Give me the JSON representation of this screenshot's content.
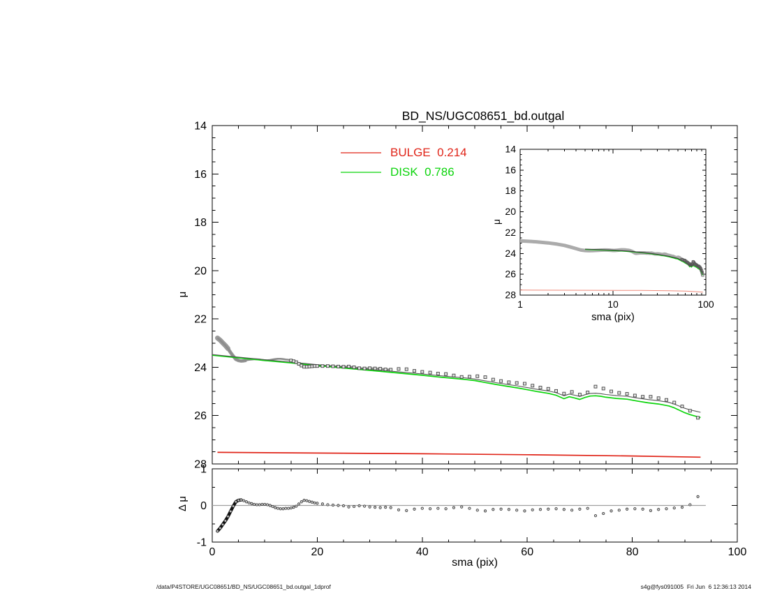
{
  "page": {
    "footer_left": "/data/P4STORE/UGC08651/BD_NS/UGC08651_bd.outgal_1dprof",
    "footer_right": "s4g@fys091005  Fri Jun  6 12:36:13 2014"
  },
  "chart_data": {
    "type": "line",
    "title": "BD_NS/UGC08651_bd.outgal",
    "panels": [
      {
        "name": "main-profile",
        "xlabel": "",
        "ylabel": "μ",
        "xlim": [
          0,
          100
        ],
        "ylim": [
          28,
          14
        ],
        "y_inverted": true,
        "xticks": [
          0,
          20,
          40,
          60,
          80,
          100
        ],
        "yticks": [
          14,
          16,
          18,
          20,
          22,
          24,
          26,
          28
        ]
      },
      {
        "name": "inset-profile-logx",
        "xlabel": "sma (pix)",
        "ylabel": "μ",
        "xscale": "log",
        "xlim": [
          1,
          100
        ],
        "ylim": [
          28,
          14
        ],
        "y_inverted": true,
        "xticks": [
          1,
          10,
          100
        ],
        "yticks": [
          14,
          16,
          18,
          20,
          22,
          24,
          26,
          28
        ]
      },
      {
        "name": "residual",
        "xlabel": "sma (pix)",
        "ylabel": "Δ μ",
        "xlim": [
          0,
          100
        ],
        "ylim": [
          -1,
          1
        ],
        "xticks": [
          0,
          20,
          40,
          60,
          80,
          100
        ],
        "yticks": [
          1,
          0,
          -1
        ]
      }
    ],
    "legend": {
      "position": "top-center",
      "entries": [
        {
          "label": "BULGE  0.214",
          "color": "#e02418"
        },
        {
          "label": "DISK  0.786",
          "color": "#0bd40b"
        }
      ]
    },
    "series": {
      "observed": {
        "name": "observed surface brightness profile",
        "marker": "square",
        "color": "#8c8c8c",
        "points": [
          [
            1,
            22.79
          ],
          [
            1.5,
            22.88
          ],
          [
            2,
            22.99
          ],
          [
            2.5,
            23.1
          ],
          [
            3,
            23.23
          ],
          [
            3.5,
            23.39
          ],
          [
            4,
            23.54
          ],
          [
            4.5,
            23.67
          ],
          [
            5,
            23.72
          ],
          [
            5.5,
            23.74
          ],
          [
            6,
            23.73
          ],
          [
            6.5,
            23.71
          ],
          [
            7,
            23.69
          ],
          [
            7.5,
            23.68
          ],
          [
            8,
            23.67
          ],
          [
            8.5,
            23.67
          ],
          [
            9,
            23.68
          ],
          [
            9.5,
            23.7
          ],
          [
            10,
            23.71
          ],
          [
            10.5,
            23.71
          ],
          [
            11,
            23.7
          ],
          [
            11.5,
            23.68
          ],
          [
            12,
            23.66
          ],
          [
            12.5,
            23.65
          ],
          [
            13,
            23.65
          ],
          [
            13.5,
            23.66
          ],
          [
            14,
            23.68
          ],
          [
            14.5,
            23.69
          ],
          [
            15,
            23.72
          ],
          [
            15.5,
            23.75
          ],
          [
            16,
            23.79
          ],
          [
            16.5,
            23.86
          ],
          [
            17,
            23.93
          ],
          [
            17.5,
            23.98
          ],
          [
            18,
            23.98
          ],
          [
            18.5,
            23.97
          ],
          [
            19,
            23.96
          ],
          [
            19.5,
            23.95
          ],
          [
            20,
            23.95
          ],
          [
            21,
            23.95
          ],
          [
            22,
            23.95
          ],
          [
            23,
            23.96
          ],
          [
            24,
            23.97
          ],
          [
            25,
            23.98
          ],
          [
            26,
            23.97
          ],
          [
            27,
            24.0
          ],
          [
            28,
            24.04
          ],
          [
            29,
            24.05
          ],
          [
            30,
            24.04
          ],
          [
            31,
            24.05
          ],
          [
            32,
            24.06
          ],
          [
            33,
            24.09
          ],
          [
            34,
            24.1
          ],
          [
            35.5,
            24.07
          ],
          [
            37,
            24.08
          ],
          [
            38.5,
            24.15
          ],
          [
            40,
            24.19
          ],
          [
            41.5,
            24.22
          ],
          [
            43,
            24.26
          ],
          [
            44.5,
            24.28
          ],
          [
            46,
            24.34
          ],
          [
            47.5,
            24.4
          ],
          [
            49,
            24.39
          ],
          [
            50.5,
            24.37
          ],
          [
            52,
            24.41
          ],
          [
            53.5,
            24.51
          ],
          [
            55,
            24.57
          ],
          [
            56.5,
            24.62
          ],
          [
            58,
            24.65
          ],
          [
            59.5,
            24.68
          ],
          [
            61,
            24.76
          ],
          [
            62.5,
            24.84
          ],
          [
            64,
            24.89
          ],
          [
            65.5,
            24.98
          ],
          [
            67,
            25.09
          ],
          [
            68.5,
            25.02
          ],
          [
            70,
            25.13
          ],
          [
            71.5,
            25.04
          ],
          [
            73,
            24.8
          ],
          [
            74.5,
            24.88
          ],
          [
            76,
            25.0
          ],
          [
            77.5,
            25.06
          ],
          [
            79,
            25.1
          ],
          [
            80.5,
            25.17
          ],
          [
            82,
            25.22
          ],
          [
            83.5,
            25.22
          ],
          [
            85,
            25.28
          ],
          [
            86.5,
            25.35
          ],
          [
            88,
            25.46
          ],
          [
            89.5,
            25.62
          ],
          [
            91,
            25.8
          ],
          [
            92.5,
            26.09
          ]
        ]
      },
      "disk": {
        "name": "DISK model",
        "fraction": 0.786,
        "color": "#0bd40b",
        "points": [
          [
            0,
            23.5
          ],
          [
            5,
            23.61
          ],
          [
            10,
            23.72
          ],
          [
            15,
            23.82
          ],
          [
            20,
            23.93
          ],
          [
            25,
            24.03
          ],
          [
            30,
            24.13
          ],
          [
            35,
            24.23
          ],
          [
            40,
            24.33
          ],
          [
            43,
            24.4
          ],
          [
            46,
            24.46
          ],
          [
            48,
            24.5
          ],
          [
            50,
            24.55
          ],
          [
            52,
            24.63
          ],
          [
            54,
            24.71
          ],
          [
            56,
            24.78
          ],
          [
            58,
            24.85
          ],
          [
            60,
            24.93
          ],
          [
            62,
            25.01
          ],
          [
            64,
            25.08
          ],
          [
            65.5,
            25.16
          ],
          [
            67,
            25.3
          ],
          [
            68,
            25.22
          ],
          [
            69,
            25.27
          ],
          [
            70,
            25.33
          ],
          [
            71,
            25.25
          ],
          [
            72,
            25.19
          ],
          [
            73,
            25.18
          ],
          [
            74,
            25.2
          ],
          [
            75,
            25.24
          ],
          [
            77,
            25.29
          ],
          [
            79,
            25.32
          ],
          [
            81,
            25.4
          ],
          [
            83,
            25.47
          ],
          [
            85,
            25.52
          ],
          [
            87,
            25.6
          ],
          [
            88,
            25.68
          ],
          [
            89,
            25.78
          ],
          [
            90,
            25.88
          ],
          [
            91,
            25.96
          ],
          [
            92,
            26.02
          ],
          [
            93,
            26.08
          ]
        ]
      },
      "bulge": {
        "name": "BULGE model",
        "fraction": 0.214,
        "color": "#e02418",
        "inset_color": "#ee8878",
        "points": [
          [
            1,
            27.52
          ],
          [
            20,
            27.55
          ],
          [
            40,
            27.58
          ],
          [
            60,
            27.62
          ],
          [
            80,
            27.67
          ],
          [
            93,
            27.72
          ]
        ]
      },
      "residual": {
        "name": "data minus model",
        "marker": "dot",
        "color": "#333333",
        "points": [
          [
            1,
            -0.7
          ],
          [
            1.5,
            -0.62
          ],
          [
            2,
            -0.52
          ],
          [
            2.5,
            -0.42
          ],
          [
            3,
            -0.3
          ],
          [
            3.5,
            -0.16
          ],
          [
            4,
            -0.02
          ],
          [
            4.5,
            0.1
          ],
          [
            5,
            0.14
          ],
          [
            5.5,
            0.15
          ],
          [
            6,
            0.13
          ],
          [
            6.5,
            0.1
          ],
          [
            7,
            0.07
          ],
          [
            7.5,
            0.05
          ],
          [
            8,
            0.03
          ],
          [
            8.5,
            0.02
          ],
          [
            9,
            0.02
          ],
          [
            9.5,
            0.03
          ],
          [
            10,
            0.03
          ],
          [
            10.5,
            0.02
          ],
          [
            11,
            0.0
          ],
          [
            11.5,
            -0.03
          ],
          [
            12,
            -0.06
          ],
          [
            12.5,
            -0.08
          ],
          [
            13,
            -0.09
          ],
          [
            13.5,
            -0.09
          ],
          [
            14,
            -0.08
          ],
          [
            14.5,
            -0.08
          ],
          [
            15,
            -0.07
          ],
          [
            15.5,
            -0.05
          ],
          [
            16,
            -0.02
          ],
          [
            16.5,
            0.04
          ],
          [
            17,
            0.1
          ],
          [
            17.5,
            0.14
          ],
          [
            18,
            0.13
          ],
          [
            18.5,
            0.11
          ],
          [
            19,
            0.09
          ],
          [
            19.5,
            0.07
          ],
          [
            20,
            0.06
          ],
          [
            21,
            0.04
          ],
          [
            22,
            0.02
          ],
          [
            23,
            0.01
          ],
          [
            24,
            0.0
          ],
          [
            25,
            -0.01
          ],
          [
            26,
            -0.04
          ],
          [
            27,
            -0.03
          ],
          [
            28,
            -0.01
          ],
          [
            29,
            -0.02
          ],
          [
            30,
            -0.04
          ],
          [
            31,
            -0.05
          ],
          [
            32,
            -0.06
          ],
          [
            33,
            -0.05
          ],
          [
            34,
            -0.06
          ],
          [
            35.5,
            -0.12
          ],
          [
            37,
            -0.14
          ],
          [
            38.5,
            -0.1
          ],
          [
            40,
            -0.08
          ],
          [
            41.5,
            -0.09
          ],
          [
            43,
            -0.08
          ],
          [
            44.5,
            -0.09
          ],
          [
            46,
            -0.06
          ],
          [
            47.5,
            -0.04
          ],
          [
            49,
            -0.08
          ],
          [
            50.5,
            -0.13
          ],
          [
            52,
            -0.15
          ],
          [
            53.5,
            -0.11
          ],
          [
            55,
            -0.1
          ],
          [
            56.5,
            -0.11
          ],
          [
            58,
            -0.13
          ],
          [
            59.5,
            -0.15
          ],
          [
            61,
            -0.12
          ],
          [
            62.5,
            -0.11
          ],
          [
            64,
            -0.1
          ],
          [
            65.5,
            -0.09
          ],
          [
            67,
            -0.11
          ],
          [
            68.5,
            -0.13
          ],
          [
            70,
            -0.1
          ],
          [
            71.5,
            -0.08
          ],
          [
            73,
            -0.28
          ],
          [
            74.5,
            -0.22
          ],
          [
            76,
            -0.15
          ],
          [
            77.5,
            -0.13
          ],
          [
            79,
            -0.1
          ],
          [
            80.5,
            -0.09
          ],
          [
            82,
            -0.1
          ],
          [
            83.5,
            -0.14
          ],
          [
            85,
            -0.11
          ],
          [
            86.5,
            -0.09
          ],
          [
            88,
            -0.07
          ],
          [
            89.5,
            -0.05
          ],
          [
            91,
            0.02
          ],
          [
            92.5,
            0.24
          ]
        ]
      }
    }
  }
}
